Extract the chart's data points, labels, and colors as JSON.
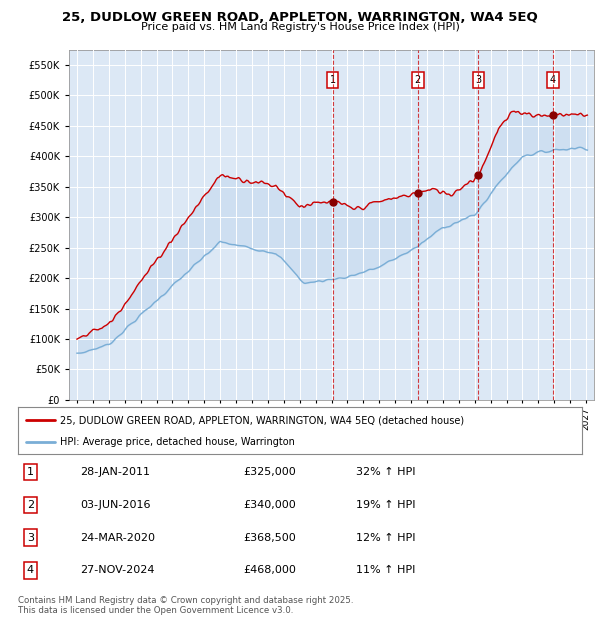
{
  "title1": "25, DUDLOW GREEN ROAD, APPLETON, WARRINGTON, WA4 5EQ",
  "title2": "Price paid vs. HM Land Registry's House Price Index (HPI)",
  "background_color": "#ffffff",
  "chart_bg": "#dce8f5",
  "grid_color": "#ffffff",
  "red_line_color": "#cc0000",
  "blue_line_color": "#7aaed6",
  "sale_dates": [
    2011.07,
    2016.42,
    2020.23,
    2024.91
  ],
  "sale_prices": [
    325000,
    340000,
    368500,
    468000
  ],
  "sale_labels": [
    "1",
    "2",
    "3",
    "4"
  ],
  "legend_red": "25, DUDLOW GREEN ROAD, APPLETON, WARRINGTON, WA4 5EQ (detached house)",
  "legend_blue": "HPI: Average price, detached house, Warrington",
  "table_rows": [
    [
      "1",
      "28-JAN-2011",
      "£325,000",
      "32% ↑ HPI"
    ],
    [
      "2",
      "03-JUN-2016",
      "£340,000",
      "19% ↑ HPI"
    ],
    [
      "3",
      "24-MAR-2020",
      "£368,500",
      "12% ↑ HPI"
    ],
    [
      "4",
      "27-NOV-2024",
      "£468,000",
      "11% ↑ HPI"
    ]
  ],
  "footer": "Contains HM Land Registry data © Crown copyright and database right 2025.\nThis data is licensed under the Open Government Licence v3.0.",
  "ylim": [
    0,
    575000
  ],
  "yticks": [
    0,
    50000,
    100000,
    150000,
    200000,
    250000,
    300000,
    350000,
    400000,
    450000,
    500000,
    550000
  ],
  "xlim_start": 1994.5,
  "xlim_end": 2027.5,
  "hatch_start": 2025.5
}
